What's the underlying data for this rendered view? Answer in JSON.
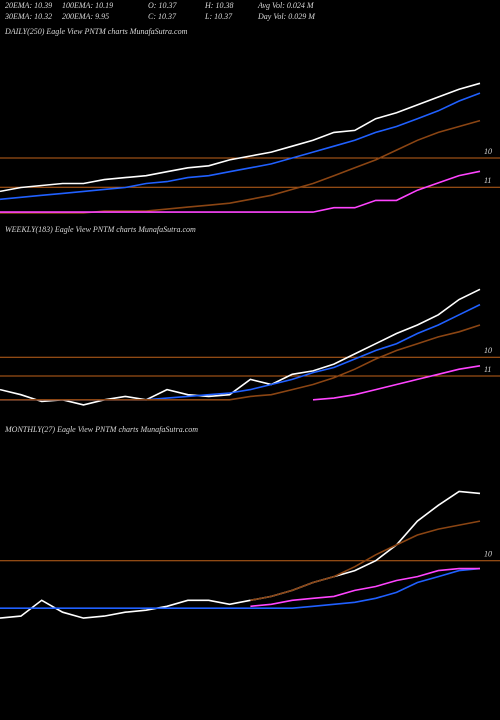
{
  "header": {
    "stats": [
      [
        "20EMA: 10.39",
        "100EMA: 10.19",
        "O: 10.37",
        "H: 10.38",
        "Avg Vol: 0.024  M"
      ],
      [
        "30EMA: 10.32",
        "200EMA: 9.95",
        "C: 10.37",
        "L: 10.37",
        "Day Vol: 0.029 M"
      ]
    ]
  },
  "chart_data": [
    {
      "type": "line",
      "title": "DAILY(250) Eagle  View  PNTM charts MunafaSutra.com",
      "ylim": [
        9.71,
        10.6
      ],
      "yticks": [
        10
      ],
      "y2lim": [
        10.81,
        12.01
      ],
      "y2ticks": [
        11
      ],
      "grid": true,
      "grid_color": "#c0621a",
      "series": [
        {
          "color": "#ffffff",
          "values": [
            9.83,
            9.85,
            9.86,
            9.87,
            9.87,
            9.89,
            9.9,
            9.91,
            9.93,
            9.95,
            9.96,
            9.99,
            10.01,
            10.03,
            10.06,
            10.09,
            10.13,
            10.14,
            10.2,
            10.23,
            10.27,
            10.31,
            10.35,
            10.38
          ]
        },
        {
          "color": "#2060ff",
          "values": [
            9.79,
            9.8,
            9.81,
            9.82,
            9.83,
            9.84,
            9.85,
            9.87,
            9.88,
            9.9,
            9.91,
            9.93,
            9.95,
            9.97,
            10.0,
            10.03,
            10.06,
            10.09,
            10.13,
            10.16,
            10.2,
            10.24,
            10.29,
            10.33
          ]
        },
        {
          "color": "#8b4513",
          "values": [
            9.72,
            9.72,
            9.72,
            9.72,
            9.72,
            9.73,
            9.73,
            9.73,
            9.74,
            9.75,
            9.76,
            9.77,
            9.79,
            9.81,
            9.84,
            9.87,
            9.91,
            9.95,
            9.99,
            10.04,
            10.09,
            10.13,
            10.16,
            10.19
          ]
        },
        {
          "color": "#ff44ff",
          "axis": "y2",
          "values": [
            10.83,
            10.83,
            10.83,
            10.83,
            10.83,
            10.83,
            10.83,
            10.83,
            10.83,
            10.83,
            10.83,
            10.83,
            10.83,
            10.83,
            10.83,
            10.83,
            10.86,
            10.86,
            10.91,
            10.91,
            10.98,
            11.03,
            11.08,
            11.11
          ]
        }
      ]
    },
    {
      "type": "line",
      "title": "WEEKLY(183) Eagle  View  PNTM charts MunafaSutra.com",
      "ylim": [
        9.69,
        10.69
      ],
      "yticks": [
        10
      ],
      "y2lim": [
        10.8,
        11.8
      ],
      "y2ticks": [
        11
      ],
      "grid": true,
      "grid_color": "#c0621a",
      "series": [
        {
          "color": "#ffffff",
          "values": [
            9.81,
            9.78,
            9.74,
            9.75,
            9.72,
            9.75,
            9.77,
            9.75,
            9.81,
            9.78,
            9.77,
            9.78,
            9.87,
            9.84,
            9.9,
            9.92,
            9.96,
            10.02,
            10.08,
            10.14,
            10.19,
            10.25,
            10.34,
            10.4
          ]
        },
        {
          "color": "#2060ff",
          "values": [
            9.75,
            9.75,
            9.75,
            9.75,
            9.75,
            9.75,
            9.75,
            9.75,
            9.76,
            9.77,
            9.78,
            9.79,
            9.81,
            9.84,
            9.87,
            9.91,
            9.94,
            9.99,
            10.04,
            10.08,
            10.14,
            10.19,
            10.25,
            10.31
          ]
        },
        {
          "color": "#8b4513",
          "values": [
            9.75,
            9.75,
            9.75,
            9.75,
            9.75,
            9.75,
            9.75,
            9.75,
            9.75,
            9.75,
            9.75,
            9.75,
            9.77,
            9.78,
            9.81,
            9.84,
            9.88,
            9.93,
            9.99,
            10.04,
            10.08,
            10.12,
            10.15,
            10.19
          ]
        },
        {
          "color": "#ff44ff",
          "axis": "y2",
          "values": [
            null,
            null,
            null,
            null,
            null,
            null,
            null,
            null,
            null,
            null,
            null,
            null,
            null,
            null,
            null,
            10.86,
            10.87,
            10.89,
            10.92,
            10.95,
            10.98,
            11.01,
            11.04,
            11.06
          ]
        }
      ]
    },
    {
      "type": "line",
      "title": "MONTHLY(27) Eagle  View  PNTM charts MunafaSutra.com",
      "ylim": [
        9.65,
        10.61
      ],
      "yticks": [
        10
      ],
      "grid": true,
      "grid_color": "#c0621a",
      "series": [
        {
          "color": "#ffffff",
          "values": [
            9.71,
            9.72,
            9.8,
            9.74,
            9.71,
            9.72,
            9.74,
            9.75,
            9.77,
            9.8,
            9.8,
            9.78,
            9.8,
            9.82,
            9.85,
            9.89,
            9.92,
            9.95,
            10.0,
            10.08,
            10.2,
            10.28,
            10.35,
            10.34
          ]
        },
        {
          "color": "#2060ff",
          "values": [
            9.76,
            9.76,
            9.76,
            9.76,
            9.76,
            9.76,
            9.76,
            9.76,
            9.76,
            9.76,
            9.76,
            9.76,
            9.76,
            9.76,
            9.76,
            9.77,
            9.78,
            9.79,
            9.81,
            9.84,
            9.89,
            9.92,
            9.95,
            9.96
          ]
        },
        {
          "color": "#8b4513",
          "values": [
            null,
            null,
            null,
            null,
            null,
            null,
            null,
            null,
            null,
            null,
            null,
            null,
            9.8,
            9.82,
            9.85,
            9.89,
            9.92,
            9.97,
            10.03,
            10.08,
            10.13,
            10.16,
            10.18,
            10.2
          ]
        },
        {
          "color": "#ff44ff",
          "values": [
            null,
            null,
            null,
            null,
            null,
            null,
            null,
            null,
            null,
            null,
            null,
            null,
            9.77,
            9.78,
            9.8,
            9.81,
            9.82,
            9.85,
            9.87,
            9.9,
            9.92,
            9.95,
            9.96,
            9.96
          ]
        }
      ]
    }
  ]
}
